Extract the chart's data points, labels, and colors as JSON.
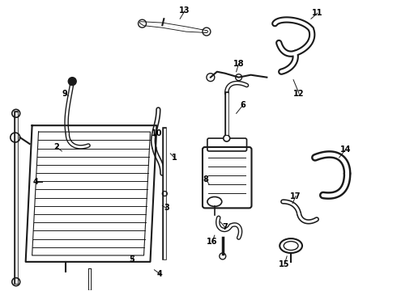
{
  "bg_color": "#ffffff",
  "line_color": "#1a1a1a",
  "text_color": "#000000",
  "fig_width": 4.9,
  "fig_height": 3.6,
  "dpi": 100
}
